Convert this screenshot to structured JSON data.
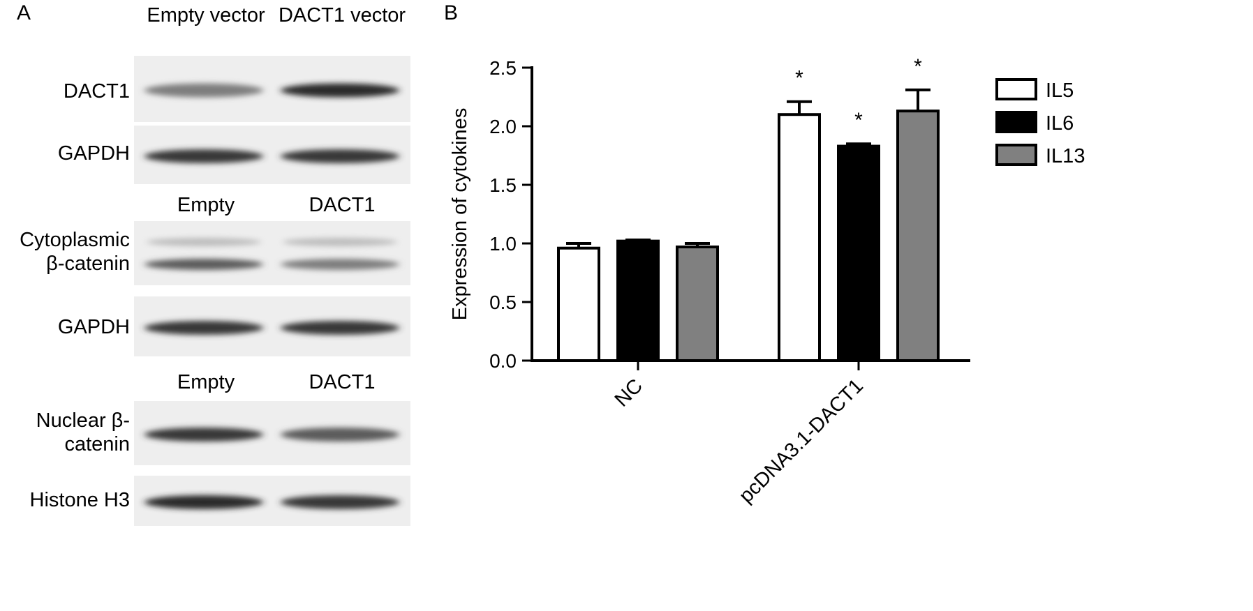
{
  "panel_a": {
    "letter": "A",
    "groups": [
      {
        "col_labels": [
          "Empty vector",
          "DACT1 vector"
        ],
        "blots": [
          {
            "label": "DACT1",
            "bands": [
              0.55,
              0.9
            ]
          },
          {
            "label": "GAPDH",
            "bands": [
              0.85,
              0.85
            ]
          }
        ]
      },
      {
        "col_labels": [
          "Empty",
          "DACT1"
        ],
        "blots": [
          {
            "label": "Cytoplasmic β-catenin",
            "bands": [
              0.7,
              0.55
            ]
          },
          {
            "label": "GAPDH",
            "bands": [
              0.85,
              0.85
            ]
          }
        ]
      },
      {
        "col_labels": [
          "Empty",
          "DACT1"
        ],
        "blots": [
          {
            "label": "Nuclear β-catenin",
            "bands": [
              0.85,
              0.7
            ]
          },
          {
            "label": "Histone H3",
            "bands": [
              0.9,
              0.85
            ]
          }
        ]
      }
    ]
  },
  "panel_b": {
    "letter": "B",
    "chart_data": {
      "type": "bar",
      "categories": [
        "NC",
        "pcDNA3.1-DACT1"
      ],
      "series": [
        {
          "name": "IL5",
          "color": "#ffffff",
          "values": [
            0.96,
            2.1
          ],
          "errors": [
            0.04,
            0.11
          ]
        },
        {
          "name": "IL6",
          "color": "#000000",
          "values": [
            1.02,
            1.83
          ],
          "errors": [
            0.01,
            0.02
          ]
        },
        {
          "name": "IL13",
          "color": "#808080",
          "values": [
            0.97,
            2.13
          ],
          "errors": [
            0.03,
            0.18
          ]
        }
      ],
      "significance": [
        [
          "",
          "",
          ""
        ],
        [
          "*",
          "*",
          "*"
        ]
      ],
      "ylabel": "Expression of cytokines",
      "xlabel": "",
      "ylim": [
        0,
        2.5
      ],
      "yticks": [
        "0.0",
        "0.5",
        "1.0",
        "1.5",
        "2.0",
        "2.5"
      ],
      "legend_position": "top-right",
      "grid": false
    }
  }
}
